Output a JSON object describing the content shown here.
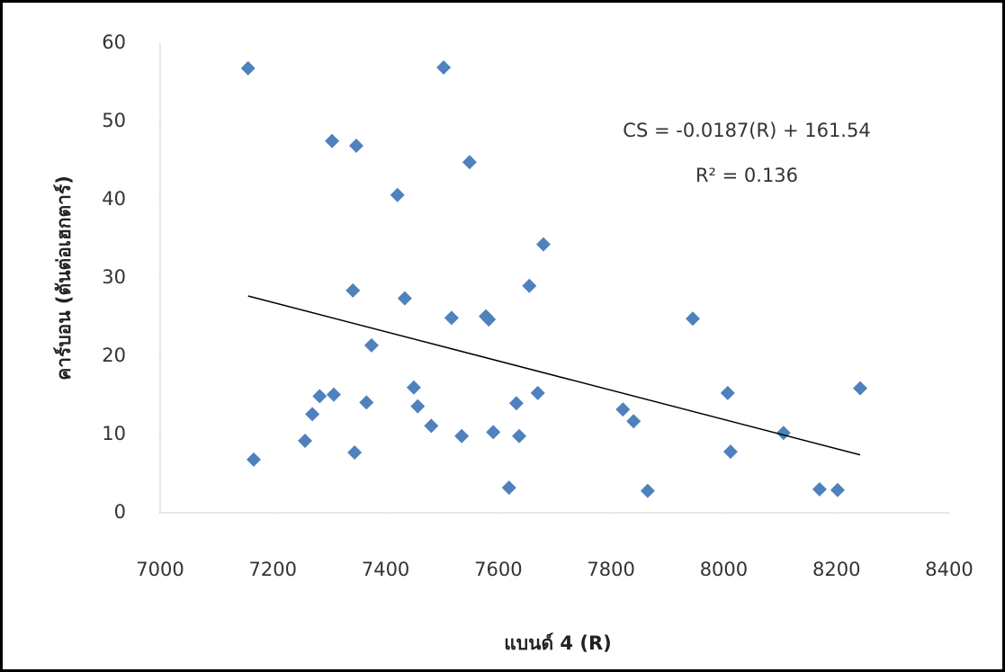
{
  "chart_data": {
    "type": "scatter",
    "x_label": "แบนด์ 4 (R)",
    "y_label": "คาร์บอน (ตันต่อเฮกตาร์)",
    "annotations": [
      "CS = -0.0187(R) + 161.54",
      "R² = 0.136"
    ],
    "color": "#4f81bd",
    "xlim": [
      7000,
      8400
    ],
    "xticks": [
      7000,
      7200,
      7400,
      7600,
      7800,
      8000,
      8200,
      8400
    ],
    "ylim": [
      0,
      60
    ],
    "yticks": [
      0,
      10,
      20,
      30,
      40,
      50,
      60
    ],
    "x": [
      7156,
      7166,
      7305,
      7348,
      7503,
      7421,
      7549,
      7342,
      7434,
      7680,
      7655,
      7517,
      7578,
      7583,
      7375,
      7945,
      7450,
      7283,
      7308,
      7366,
      7457,
      7270,
      7481,
      7257,
      7345,
      7535,
      7591,
      7637,
      7632,
      7670,
      7821,
      7840,
      8007,
      8012,
      8106,
      8242,
      7619,
      7865,
      8170,
      8202
    ],
    "values": [
      56.8,
      6.8,
      47.5,
      46.9,
      56.9,
      40.6,
      44.8,
      28.4,
      27.4,
      34.3,
      29.0,
      24.9,
      25.1,
      24.7,
      21.4,
      24.8,
      16.0,
      14.9,
      15.1,
      14.1,
      13.6,
      12.6,
      11.1,
      9.2,
      7.7,
      9.8,
      10.3,
      9.8,
      14.0,
      15.3,
      13.2,
      11.7,
      15.3,
      7.8,
      10.2,
      15.9,
      3.2,
      2.8,
      3.0,
      2.9
    ],
    "trendline": {
      "x": [
        7156,
        8242
      ],
      "values": [
        27.7,
        7.4
      ],
      "color": "#000000"
    }
  }
}
